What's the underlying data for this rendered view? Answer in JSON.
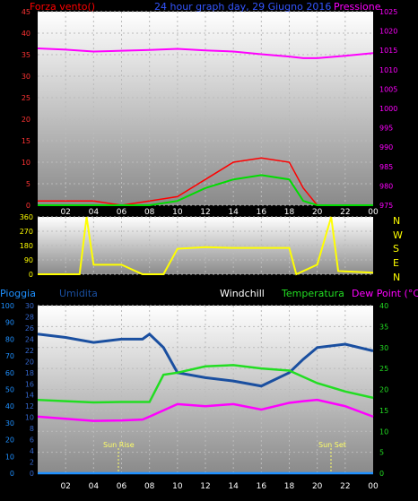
{
  "header": {
    "left_label": "Forza vento()",
    "title": "24 hour graph day, 29 Giugno 2016",
    "right_label": "Pressione"
  },
  "x_tick_labels": [
    "02",
    "04",
    "06",
    "08",
    "10",
    "12",
    "14",
    "16",
    "18",
    "20",
    "22",
    "00"
  ],
  "wind_dir_labels": [
    "N",
    "W",
    "S",
    "E",
    "N"
  ],
  "bottom_header": {
    "pioggia": "Pioggia",
    "umidita": "Umidita",
    "windchill": "Windchill",
    "temperatura": "Temperatura",
    "dewpoint": "Dew Point (°C)"
  },
  "sun_labels": {
    "rise": "Sun Rise",
    "set": "Sun Set"
  },
  "colors": {
    "wind": "#ff0000",
    "gust": "#00dd00",
    "pressure": "#ff00ff",
    "direction": "#ffff00",
    "humidity": "#1a4fa0",
    "temperature": "#22dd22",
    "dewpoint": "#ff00ff",
    "rain": "#1e90ff"
  },
  "chart_data": [
    {
      "type": "line",
      "title": "24 hour graph day, 29 Giugno 2016",
      "y_left": {
        "label": "Forza vento()",
        "range": [
          0,
          45
        ],
        "ticks": [
          0,
          5,
          10,
          15,
          20,
          25,
          30,
          35,
          40,
          45
        ]
      },
      "y_right": {
        "label": "Pressione",
        "range": [
          975,
          1025
        ],
        "ticks": [
          975,
          980,
          985,
          990,
          995,
          1000,
          1005,
          1010,
          1015,
          1020,
          1025
        ]
      },
      "x": [
        "00:00",
        "02:00",
        "04:00",
        "06:00",
        "08:00",
        "10:00",
        "12:00",
        "14:00",
        "16:00",
        "18:00",
        "19:00",
        "20:00",
        "22:00",
        "24:00"
      ],
      "series": [
        {
          "name": "Pressione",
          "values": [
            1015.5,
            1015.2,
            1014.7,
            1014.9,
            1015.1,
            1015.4,
            1015.0,
            1014.7,
            1014.0,
            1013.4,
            1013.0,
            1013.0,
            1013.6,
            1014.3
          ]
        },
        {
          "values": [
            1,
            1,
            1,
            0,
            1,
            2,
            6,
            10,
            11,
            10,
            4,
            0,
            0,
            0
          ]
        },
        {
          "values": [
            0,
            0,
            0,
            0,
            0,
            1,
            4,
            6,
            7,
            6,
            1,
            0,
            0,
            0
          ]
        }
      ]
    },
    {
      "type": "line",
      "y_left": {
        "range": [
          0,
          360
        ],
        "ticks": [
          0,
          90,
          180,
          270,
          360
        ]
      },
      "x": [
        "00:00",
        "03:00",
        "03:30",
        "04:00",
        "06:00",
        "07:30",
        "09:00",
        "10:00",
        "12:00",
        "14:00",
        "16:00",
        "18:00",
        "18:30",
        "20:00",
        "21:00",
        "21:30",
        "24:00"
      ],
      "series": [
        {
          "values": [
            0,
            0,
            360,
            60,
            60,
            0,
            0,
            160,
            170,
            165,
            165,
            165,
            0,
            60,
            360,
            20,
            10
          ]
        }
      ]
    },
    {
      "type": "line",
      "y_left": {
        "label": "Pioggia",
        "range": [
          0,
          100
        ],
        "ticks": [
          0,
          10,
          20,
          30,
          40,
          50,
          60,
          70,
          80,
          90,
          100
        ]
      },
      "y_left2": {
        "label": "Umidita",
        "range": [
          0,
          30
        ],
        "ticks": [
          0,
          2,
          4,
          6,
          8,
          10,
          12,
          14,
          16,
          18,
          20,
          22,
          24,
          26,
          28,
          30
        ]
      },
      "y_right": {
        "label": "Dew Point (°C)",
        "range": [
          0,
          40
        ],
        "ticks": [
          0,
          5,
          10,
          15,
          20,
          25,
          30,
          35,
          40
        ]
      },
      "x": [
        "00:00",
        "02:00",
        "04:00",
        "06:00",
        "07:30",
        "08:00",
        "09:00",
        "10:00",
        "12:00",
        "14:00",
        "16:00",
        "18:00",
        "19:00",
        "20:00",
        "22:00",
        "24:00"
      ],
      "series": [
        {
          "name": "Umidita",
          "values": [
            83,
            81,
            78,
            80,
            80,
            83,
            75,
            60,
            57,
            55,
            52,
            60,
            68,
            75,
            77,
            73
          ]
        },
        {
          "name": "Temperatura",
          "values": [
            17.5,
            17.2,
            16.9,
            17.0,
            17.0,
            17.0,
            23.5,
            24.0,
            25.5,
            25.8,
            25.0,
            24.5,
            23.0,
            21.5,
            19.5,
            18.0
          ]
        },
        {
          "name": "Dew Point (°C)",
          "values": [
            13.5,
            13.0,
            12.5,
            12.6,
            12.8,
            13.5,
            15.0,
            16.5,
            16.0,
            16.5,
            15.2,
            16.8,
            17.2,
            17.5,
            16.0,
            13.5
          ]
        },
        {
          "name": "Pioggia",
          "values": [
            0,
            0,
            0,
            0,
            0,
            0,
            0,
            0,
            0,
            0,
            0,
            0,
            0,
            0,
            0,
            0
          ]
        }
      ]
    }
  ]
}
